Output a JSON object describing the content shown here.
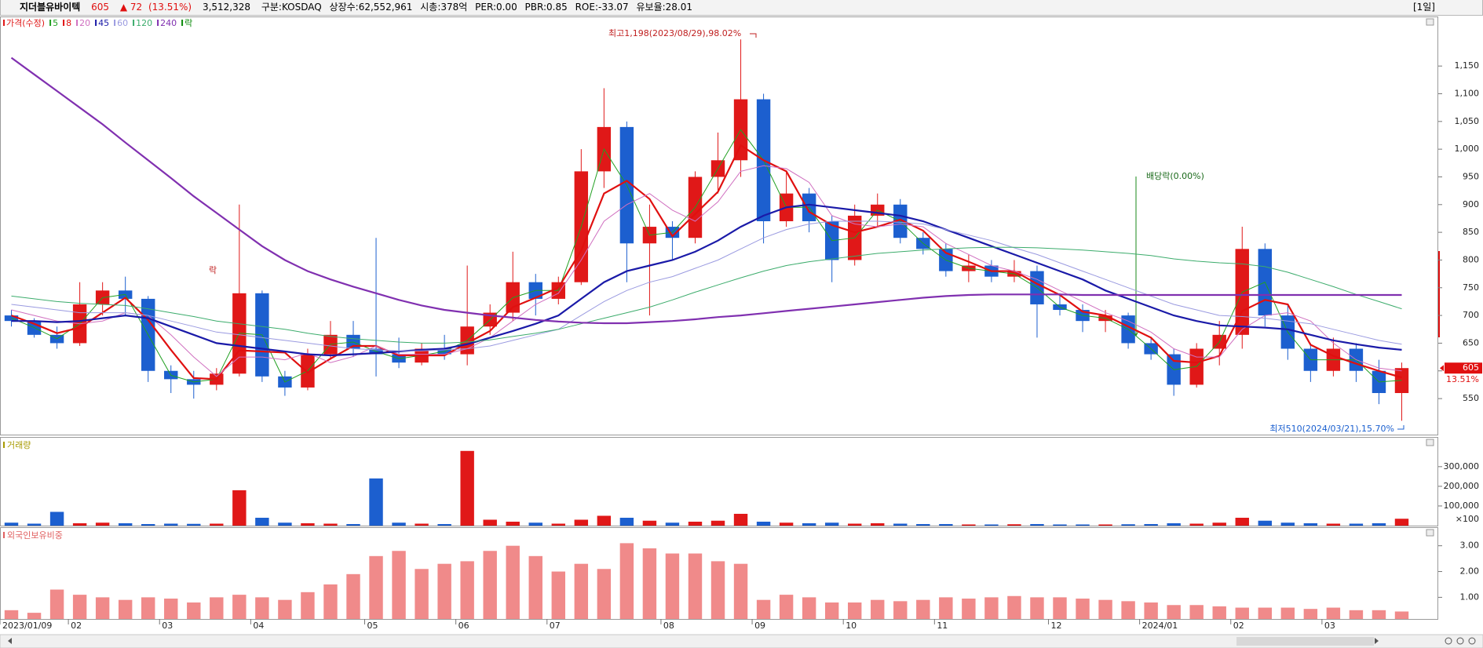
{
  "header": {
    "name": "지더블유바이텍",
    "price": "605",
    "change": "▲ 72",
    "change_pct": "(13.51%)",
    "volume": "3,512,328",
    "info": [
      "구분:KOSDAQ",
      "상장수:62,552,961",
      "시총:378억",
      "PER:0.00",
      "PBR:0.85",
      "ROE:-33.07",
      "유보율:28.01"
    ],
    "period": "[1일]"
  },
  "chart_data": [
    {
      "type": "candlestick",
      "name": "가격(수정)",
      "ex_marker_name": "락",
      "ex_marker_color": "#0a8a0a",
      "up_color": "#e01818",
      "down_color": "#1c5fcf",
      "categories": [
        "2023/01/09",
        null,
        null,
        "02",
        null,
        null,
        null,
        "03",
        null,
        null,
        null,
        "04",
        null,
        null,
        null,
        null,
        "05",
        null,
        null,
        null,
        "06",
        null,
        null,
        null,
        "07",
        null,
        null,
        null,
        null,
        "08",
        null,
        null,
        null,
        "09",
        null,
        null,
        null,
        "10",
        null,
        null,
        null,
        "11",
        null,
        null,
        null,
        null,
        "12",
        null,
        null,
        null,
        "2024/01",
        null,
        null,
        null,
        "02",
        null,
        null,
        null,
        "03",
        null,
        null,
        null
      ],
      "open": [
        700,
        690,
        665,
        650,
        720,
        745,
        730,
        600,
        585,
        575,
        595,
        740,
        590,
        570,
        630,
        665,
        640,
        630,
        615,
        640,
        630,
        680,
        705,
        760,
        730,
        760,
        960,
        1040,
        830,
        860,
        840,
        950,
        980,
        1090,
        870,
        920,
        870,
        800,
        880,
        900,
        840,
        820,
        780,
        790,
        770,
        780,
        720,
        710,
        690,
        700,
        650,
        630,
        575,
        640,
        665,
        820,
        700,
        640,
        600,
        640,
        600,
        560
      ],
      "high": [
        710,
        695,
        680,
        760,
        760,
        770,
        735,
        610,
        600,
        605,
        900,
        745,
        600,
        640,
        690,
        690,
        840,
        660,
        650,
        665,
        790,
        720,
        815,
        775,
        770,
        1000,
        1110,
        1050,
        900,
        870,
        960,
        1030,
        1198,
        1100,
        960,
        930,
        880,
        900,
        920,
        910,
        850,
        830,
        810,
        800,
        800,
        790,
        740,
        720,
        710,
        705,
        660,
        640,
        650,
        690,
        860,
        830,
        720,
        650,
        660,
        650,
        620,
        615
      ],
      "low": [
        680,
        660,
        640,
        645,
        700,
        700,
        580,
        560,
        550,
        565,
        590,
        580,
        555,
        565,
        620,
        625,
        590,
        605,
        610,
        620,
        610,
        665,
        690,
        700,
        720,
        755,
        930,
        760,
        700,
        800,
        830,
        920,
        950,
        830,
        860,
        850,
        760,
        790,
        860,
        830,
        810,
        770,
        760,
        760,
        760,
        660,
        700,
        670,
        670,
        640,
        620,
        555,
        570,
        610,
        640,
        680,
        620,
        580,
        590,
        580,
        540,
        510
      ],
      "close": [
        690,
        665,
        650,
        720,
        745,
        730,
        600,
        585,
        575,
        595,
        740,
        590,
        570,
        630,
        665,
        640,
        630,
        615,
        640,
        630,
        680,
        705,
        760,
        730,
        760,
        960,
        1040,
        830,
        860,
        840,
        950,
        980,
        1090,
        870,
        920,
        870,
        800,
        880,
        900,
        840,
        820,
        780,
        790,
        770,
        780,
        720,
        710,
        690,
        700,
        650,
        630,
        575,
        640,
        665,
        820,
        700,
        640,
        600,
        640,
        600,
        560,
        605
      ],
      "series": [
        {
          "name": "5",
          "color": "#22a022",
          "bold": false,
          "values": [
            695,
            678,
            658,
            685,
            732,
            738,
            665,
            592,
            580,
            585,
            668,
            665,
            580,
            600,
            648,
            652,
            635,
            622,
            628,
            635,
            655,
            692,
            732,
            745,
            745,
            860,
            1000,
            935,
            845,
            850,
            895,
            965,
            1035,
            980,
            895,
            895,
            835,
            840,
            890,
            870,
            830,
            800,
            785,
            780,
            775,
            750,
            715,
            700,
            695,
            675,
            640,
            602,
            608,
            652,
            742,
            760,
            670,
            620,
            620,
            620,
            580,
            583
          ]
        },
        {
          "name": "8",
          "color": "#e01010",
          "bold": true,
          "values": [
            700,
            685,
            668,
            678,
            705,
            732,
            692,
            638,
            587,
            585,
            637,
            635,
            633,
            597,
            622,
            645,
            645,
            628,
            628,
            628,
            650,
            672,
            715,
            732,
            750,
            817,
            920,
            943,
            910,
            843,
            883,
            923,
            1007,
            980,
            960,
            887,
            863,
            850,
            860,
            873,
            853,
            813,
            797,
            780,
            780,
            757,
            737,
            707,
            700,
            680,
            660,
            618,
            615,
            627,
            708,
            728,
            720,
            647,
            627,
            613,
            600,
            588
          ]
        },
        {
          "name": "20",
          "color": "#d070c0",
          "bold": false,
          "values": [
            710,
            700,
            690,
            685,
            690,
            705,
            700,
            665,
            625,
            590,
            625,
            625,
            620,
            632,
            615,
            626,
            645,
            630,
            630,
            630,
            640,
            660,
            690,
            720,
            740,
            800,
            870,
            900,
            920,
            890,
            870,
            905,
            960,
            970,
            965,
            940,
            880,
            865,
            860,
            865,
            860,
            830,
            810,
            790,
            780,
            765,
            745,
            725,
            705,
            690,
            670,
            640,
            625,
            625,
            675,
            700,
            705,
            690,
            650,
            620,
            605,
            600
          ]
        },
        {
          "name": "45",
          "color": "#1a1aa8",
          "bold": true,
          "values": [
            690,
            690,
            688,
            690,
            695,
            700,
            695,
            680,
            665,
            650,
            645,
            640,
            635,
            630,
            628,
            630,
            632,
            635,
            638,
            640,
            648,
            660,
            672,
            685,
            700,
            730,
            760,
            780,
            790,
            800,
            815,
            835,
            860,
            880,
            895,
            900,
            895,
            890,
            885,
            880,
            870,
            855,
            840,
            825,
            810,
            795,
            780,
            765,
            745,
            730,
            715,
            700,
            690,
            682,
            680,
            678,
            675,
            665,
            655,
            648,
            642,
            638
          ]
        },
        {
          "name": "60",
          "color": "#9a9ae0",
          "bold": false,
          "values": [
            720,
            715,
            710,
            705,
            705,
            705,
            700,
            690,
            680,
            670,
            665,
            660,
            655,
            650,
            645,
            640,
            638,
            636,
            636,
            638,
            640,
            645,
            655,
            665,
            675,
            700,
            725,
            745,
            760,
            770,
            785,
            800,
            820,
            840,
            855,
            865,
            870,
            870,
            870,
            868,
            865,
            855,
            845,
            835,
            822,
            810,
            795,
            780,
            765,
            750,
            735,
            720,
            710,
            700,
            698,
            695,
            690,
            685,
            675,
            665,
            655,
            648
          ]
        },
        {
          "name": "120",
          "color": "#3cac6c",
          "bold": false,
          "values": [
            735,
            730,
            725,
            722,
            720,
            718,
            712,
            705,
            698,
            690,
            685,
            680,
            675,
            668,
            662,
            658,
            655,
            652,
            650,
            650,
            652,
            656,
            662,
            668,
            675,
            685,
            695,
            705,
            715,
            728,
            742,
            755,
            768,
            780,
            790,
            797,
            802,
            807,
            812,
            815,
            818,
            820,
            822,
            823,
            823,
            822,
            820,
            818,
            815,
            812,
            808,
            802,
            798,
            795,
            793,
            788,
            778,
            765,
            752,
            738,
            725,
            712
          ]
        },
        {
          "name": "240",
          "color": "#8030b0",
          "bold": true,
          "values": [
            1165,
            1135,
            1105,
            1075,
            1045,
            1012,
            980,
            948,
            915,
            885,
            855,
            825,
            800,
            780,
            765,
            752,
            740,
            728,
            718,
            710,
            705,
            700,
            696,
            692,
            689,
            687,
            686,
            686,
            688,
            690,
            693,
            697,
            700,
            704,
            708,
            712,
            716,
            720,
            724,
            728,
            732,
            735,
            737,
            738,
            738,
            738,
            738,
            737,
            737,
            737,
            737,
            737,
            737,
            737,
            737,
            737,
            737,
            737,
            737,
            737,
            737,
            737
          ]
        }
      ],
      "ylim": [
        485,
        1238
      ],
      "yticks": [
        550,
        600,
        650,
        700,
        750,
        800,
        850,
        900,
        950,
        {
          "value": 1000,
          "label": "1,000"
        },
        {
          "value": 1050,
          "label": "1,050"
        },
        {
          "value": 1100,
          "label": "1,100"
        },
        {
          "value": 1150,
          "label": "1,150"
        }
      ],
      "annotations": {
        "high": "최고1,198(2023/08/29),98.02%",
        "low": "최저510(2024/03/21),15.70%",
        "dividend": "배당락(0.00%)",
        "ex_mark": "락"
      },
      "last_price": 605,
      "last_change_label": "13.51%"
    },
    {
      "type": "bar",
      "title": "거래량",
      "title_color": "#a89a00",
      "unit_label": "×100",
      "values": [
        15000,
        10000,
        70000,
        12000,
        15000,
        12000,
        8000,
        10000,
        9000,
        10000,
        180000,
        40000,
        15000,
        12000,
        10000,
        8000,
        240000,
        15000,
        10000,
        8000,
        380000,
        30000,
        20000,
        15000,
        10000,
        30000,
        50000,
        40000,
        25000,
        15000,
        20000,
        25000,
        60000,
        20000,
        15000,
        12000,
        15000,
        10000,
        12000,
        10000,
        8000,
        8000,
        6000,
        6000,
        7000,
        8000,
        6000,
        6000,
        6000,
        7000,
        8000,
        12000,
        10000,
        15000,
        40000,
        25000,
        15000,
        12000,
        10000,
        10000,
        12000,
        35000
      ],
      "ylim": [
        0,
        447000
      ],
      "yticks": [
        {
          "value": 100000,
          "label": "100,000"
        },
        {
          "value": 200000,
          "label": "200,000"
        },
        {
          "value": 300000,
          "label": "300,000"
        }
      ]
    },
    {
      "type": "bar",
      "title": "외국인보유비중",
      "title_color": "#e06060",
      "color": "#f08a8a",
      "values": [
        0.5,
        0.4,
        1.3,
        1.1,
        1.0,
        0.9,
        1.0,
        0.95,
        0.8,
        1.0,
        1.1,
        1.0,
        0.9,
        1.2,
        1.5,
        1.9,
        2.6,
        2.8,
        2.1,
        2.3,
        2.4,
        2.8,
        3.0,
        2.6,
        2.0,
        2.3,
        2.1,
        3.1,
        2.9,
        2.7,
        2.7,
        2.4,
        2.3,
        0.9,
        1.1,
        1.0,
        0.8,
        0.8,
        0.9,
        0.85,
        0.9,
        1.0,
        0.95,
        1.0,
        1.05,
        1.0,
        1.0,
        0.95,
        0.9,
        0.85,
        0.8,
        0.7,
        0.7,
        0.65,
        0.6,
        0.6,
        0.6,
        0.55,
        0.6,
        0.5,
        0.5,
        0.45
      ],
      "ylim": [
        0.16,
        3.69
      ],
      "yticks": [
        {
          "value": 1,
          "label": "1.00"
        },
        {
          "value": 2,
          "label": "2.00"
        },
        {
          "value": 3,
          "label": "3.00"
        }
      ]
    }
  ]
}
